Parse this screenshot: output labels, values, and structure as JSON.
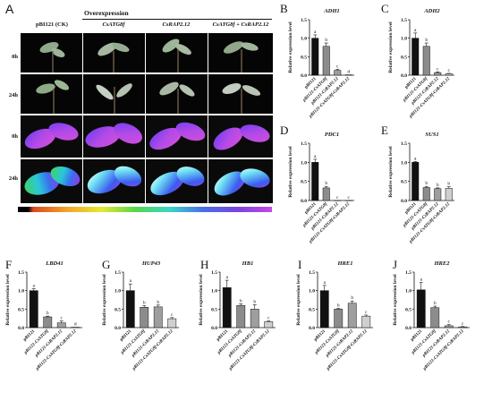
{
  "panel_A": {
    "letter": "A",
    "overexpression_label": "Overexpression",
    "columns": [
      "pBI121 (CK)",
      "CsATG8f",
      "CsRAP2.12",
      "CsATG8f + CsRAP2.12"
    ],
    "rows": [
      "0h",
      "24h",
      "0h",
      "24h"
    ],
    "colorbar": [
      "#000000",
      "#d94a1f",
      "#f2a52a",
      "#e6e830",
      "#57d64a",
      "#3cd6c8",
      "#4a6ee8",
      "#7a44e0",
      "#c848e6"
    ]
  },
  "charts": [
    {
      "id": "B",
      "letter": "B",
      "gene": "ADH1",
      "ylabel": "Relative expression level"
    },
    {
      "id": "C",
      "letter": "C",
      "gene": "ADH2",
      "ylabel": "Relative expression level"
    },
    {
      "id": "D",
      "letter": "D",
      "gene": "PDC1",
      "ylabel": "Relative expression level"
    },
    {
      "id": "E",
      "letter": "E",
      "gene": "SUS1",
      "ylabel": "Relative expression level"
    },
    {
      "id": "F",
      "letter": "F",
      "gene": "LBD41",
      "ylabel": "Relative expression level"
    },
    {
      "id": "G",
      "letter": "G",
      "gene": "HUP43",
      "ylabel": "Relative expression level"
    },
    {
      "id": "H",
      "letter": "H",
      "gene": "HB1",
      "ylabel": "Relative expression level"
    },
    {
      "id": "I",
      "letter": "I",
      "gene": "HRE1",
      "ylabel": "Relative expression level"
    },
    {
      "id": "J",
      "letter": "J",
      "gene": "HRE2",
      "ylabel": "Relative expression level"
    }
  ],
  "chart_data": [
    {
      "type": "bar",
      "title": "ADH1",
      "ylabel": "Relative expression level",
      "ylim": [
        0,
        1.5
      ],
      "categories": [
        "pBI121",
        "pBI121-CsATG8f",
        "pBI121-CsRAP2.12",
        "pBI121-CsATG8f-CsRAP2.12"
      ],
      "values": [
        1.0,
        0.78,
        0.13,
        0.01
      ],
      "errors": [
        0.09,
        0.09,
        0.03,
        0.0
      ],
      "letters": [
        "a",
        "b",
        "c",
        "d"
      ],
      "yticks": [
        "0.0",
        "0.5",
        "1.0",
        "1.5"
      ],
      "colors": [
        "#111111",
        "#8c8c8c",
        "#9e9e9e",
        "#cfcfcf"
      ]
    },
    {
      "type": "bar",
      "title": "ADH2",
      "ylabel": "Relative expression level",
      "ylim": [
        0,
        1.5
      ],
      "categories": [
        "pBI121",
        "pBI121-CsATG8f",
        "pBI121-CsRAP2.12",
        "pBI121-CsATG8f-CsRAP2.12"
      ],
      "values": [
        1.0,
        0.78,
        0.07,
        0.04
      ],
      "errors": [
        0.14,
        0.09,
        0.02,
        0.01
      ],
      "letters": [
        "a",
        "b",
        "c",
        "c"
      ],
      "yticks": [
        "0.0",
        "0.5",
        "1.0",
        "1.5"
      ],
      "colors": [
        "#111111",
        "#8c8c8c",
        "#9e9e9e",
        "#cfcfcf"
      ]
    },
    {
      "type": "bar",
      "title": "PDC1",
      "ylabel": "Relative expression level",
      "ylim": [
        0,
        1.5
      ],
      "categories": [
        "pBI121",
        "pBI121-CsATG8f",
        "pBI121-CsRAP2.12",
        "pBI121-CsATG8f-CsRAP2.12"
      ],
      "values": [
        1.0,
        0.33,
        0.0,
        0.0
      ],
      "errors": [
        0.08,
        0.04,
        0.0,
        0.0
      ],
      "letters": [
        "a",
        "b",
        "c",
        "c"
      ],
      "yticks": [
        "0.0",
        "0.5",
        "1.0",
        "1.5"
      ],
      "colors": [
        "#111111",
        "#8c8c8c",
        "#9e9e9e",
        "#cfcfcf"
      ]
    },
    {
      "type": "bar",
      "title": "SUS1",
      "ylabel": "Relative expression level",
      "ylim": [
        0,
        1.5
      ],
      "categories": [
        "pBI121",
        "pBI121-CsATG8f",
        "pBI121-CsRAP2.12",
        "pBI121-CsATG8f-CsRAP2.12"
      ],
      "values": [
        1.0,
        0.34,
        0.31,
        0.32
      ],
      "errors": [
        0.02,
        0.03,
        0.02,
        0.04
      ],
      "letters": [
        "a",
        "b",
        "b",
        "b"
      ],
      "yticks": [
        "0.0",
        "0.5",
        "1.0",
        "1.5"
      ],
      "colors": [
        "#111111",
        "#8c8c8c",
        "#9e9e9e",
        "#cfcfcf"
      ]
    },
    {
      "type": "bar",
      "title": "LBD41",
      "ylabel": "Relative expression level",
      "ylim": [
        0,
        1.5
      ],
      "categories": [
        "pBI121",
        "pBI121-CsATG8f",
        "pBI121-CsRAP2.12",
        "pBI121-CsATG8f-CsRAP2.12"
      ],
      "values": [
        1.0,
        0.29,
        0.13,
        0.01
      ],
      "errors": [
        0.05,
        0.02,
        0.05,
        0.0
      ],
      "letters": [
        "a",
        "b",
        "c",
        "d"
      ],
      "yticks": [
        "0.0",
        "0.5",
        "1.0",
        "1.5"
      ],
      "colors": [
        "#111111",
        "#8c8c8c",
        "#9e9e9e",
        "#cfcfcf"
      ]
    },
    {
      "type": "bar",
      "title": "HUP43",
      "ylabel": "Relative expression level",
      "ylim": [
        0,
        1.5
      ],
      "categories": [
        "pBI121",
        "pBI121-CsATG8f",
        "pBI121-CsRAP2.12",
        "pBI121-CsATG8f-CsRAP2.12"
      ],
      "values": [
        1.0,
        0.55,
        0.56,
        0.24
      ],
      "errors": [
        0.18,
        0.04,
        0.05,
        0.03
      ],
      "letters": [
        "a",
        "b",
        "b",
        "c"
      ],
      "yticks": [
        "0.0",
        "0.5",
        "1.0",
        "1.5"
      ],
      "colors": [
        "#111111",
        "#8c8c8c",
        "#9e9e9e",
        "#cfcfcf"
      ]
    },
    {
      "type": "bar",
      "title": "HB1",
      "ylabel": "Relative expression level",
      "ylim": [
        0,
        1.5
      ],
      "categories": [
        "pBI121",
        "pBI121-CsATG8f",
        "pBI121-CsRAP2.12",
        "pBI121-CsATG8f-CsRAP2.12"
      ],
      "values": [
        1.08,
        0.6,
        0.5,
        0.16
      ],
      "errors": [
        0.2,
        0.04,
        0.12,
        0.02
      ],
      "letters": [
        "a",
        "b",
        "b",
        "c"
      ],
      "yticks": [
        "0.0",
        "0.5",
        "1.0",
        "1.5"
      ],
      "colors": [
        "#111111",
        "#8c8c8c",
        "#9e9e9e",
        "#cfcfcf"
      ]
    },
    {
      "type": "bar",
      "title": "HRE1",
      "ylabel": "Relative expression level",
      "ylim": [
        0,
        1.5
      ],
      "categories": [
        "pBI121",
        "pBI121-CsATG8f",
        "pBI121-CsRAP2.12",
        "pBI121-CsATG8f-CsRAP2.12"
      ],
      "values": [
        1.0,
        0.5,
        0.66,
        0.31
      ],
      "errors": [
        0.14,
        0.02,
        0.06,
        0.03
      ],
      "letters": [
        "a",
        "b",
        "b",
        "c"
      ],
      "yticks": [
        "0.0",
        "0.5",
        "1.0",
        "1.5"
      ],
      "colors": [
        "#111111",
        "#8c8c8c",
        "#9e9e9e",
        "#cfcfcf"
      ]
    },
    {
      "type": "bar",
      "title": "HRE2",
      "ylabel": "Relative expression level",
      "ylim": [
        0,
        1.5
      ],
      "categories": [
        "pBI121",
        "pBI121-CsATG8f",
        "pBI121-CsRAP2.12",
        "pBI121-CsATG8f-CsRAP2.12"
      ],
      "values": [
        1.02,
        0.54,
        0.05,
        0.02
      ],
      "errors": [
        0.2,
        0.04,
        0.03,
        0.01
      ],
      "letters": [
        "a",
        "b",
        "c",
        "c"
      ],
      "yticks": [
        "0.0",
        "0.5",
        "1.0",
        "1.5"
      ],
      "colors": [
        "#111111",
        "#8c8c8c",
        "#9e9e9e",
        "#cfcfcf"
      ]
    }
  ]
}
